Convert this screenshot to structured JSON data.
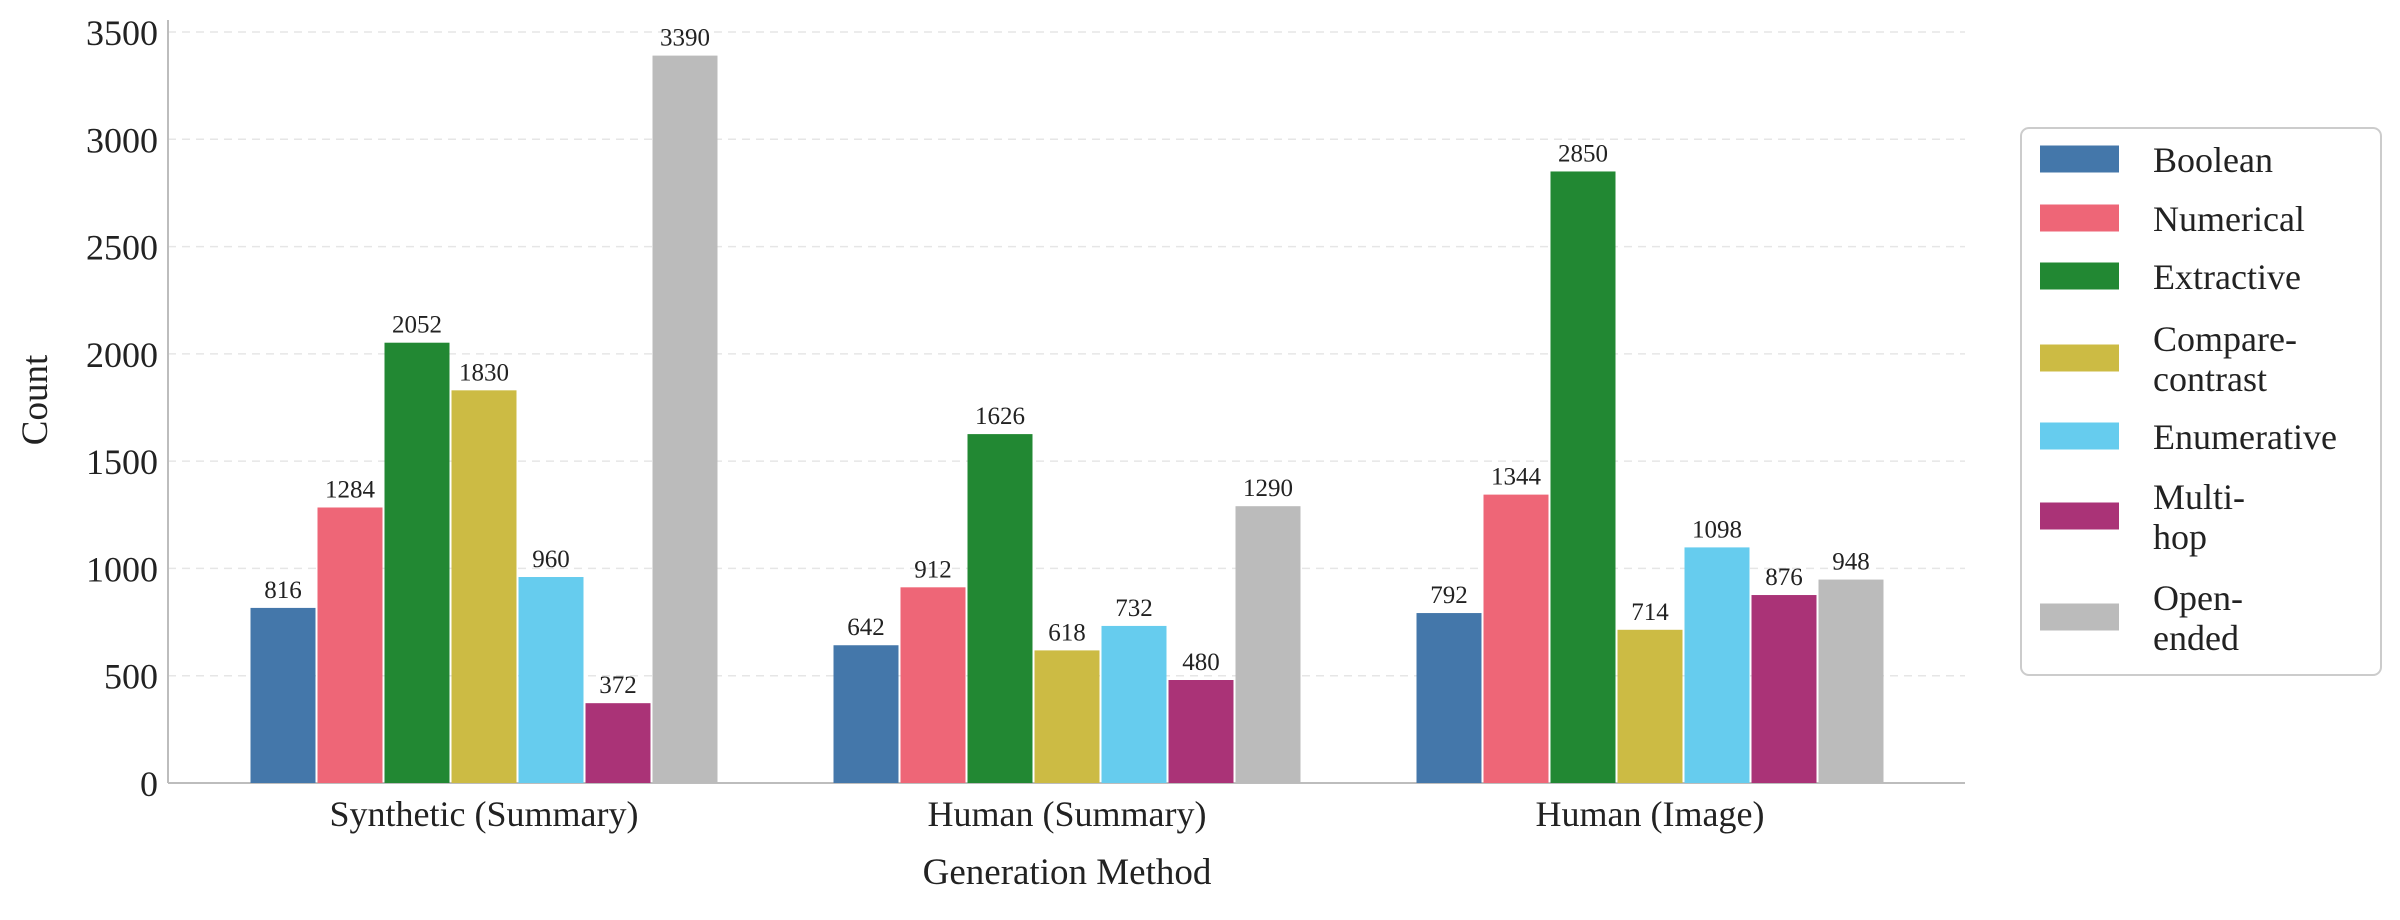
{
  "chart_data": {
    "type": "bar",
    "title": "",
    "xlabel": "Generation Method",
    "ylabel": "Count",
    "ylim": [
      0,
      3500
    ],
    "yticks": [
      0,
      500,
      1000,
      1500,
      2000,
      2500,
      3000,
      3500
    ],
    "grid": "horizontal dashed",
    "legend_position": "right",
    "categories": [
      "Synthetic (Summary)",
      "Human (Summary)",
      "Human (Image)"
    ],
    "series": [
      {
        "name": "Boolean",
        "legend_lines": [
          "Boolean"
        ],
        "color": "#4477AA",
        "values": [
          816,
          642,
          792
        ]
      },
      {
        "name": "Numerical",
        "legend_lines": [
          "Numerical"
        ],
        "color": "#EE6677",
        "values": [
          1284,
          912,
          1344
        ]
      },
      {
        "name": "Extractive",
        "legend_lines": [
          "Extractive"
        ],
        "color": "#228833",
        "values": [
          2052,
          1626,
          2850
        ]
      },
      {
        "name": "Compare-contrast",
        "legend_lines": [
          "Compare-",
          "contrast"
        ],
        "color": "#CCBB44",
        "values": [
          1830,
          618,
          714
        ]
      },
      {
        "name": "Enumerative",
        "legend_lines": [
          "Enumerative"
        ],
        "color": "#66CCEE",
        "values": [
          960,
          732,
          1098
        ]
      },
      {
        "name": "Multi-hop",
        "legend_lines": [
          "Multi-",
          "hop"
        ],
        "color": "#AA3377",
        "values": [
          372,
          480,
          876
        ]
      },
      {
        "name": "Open-ended",
        "legend_lines": [
          "Open-",
          "ended"
        ],
        "color": "#BBBBBB",
        "values": [
          3390,
          1290,
          948
        ]
      }
    ]
  }
}
